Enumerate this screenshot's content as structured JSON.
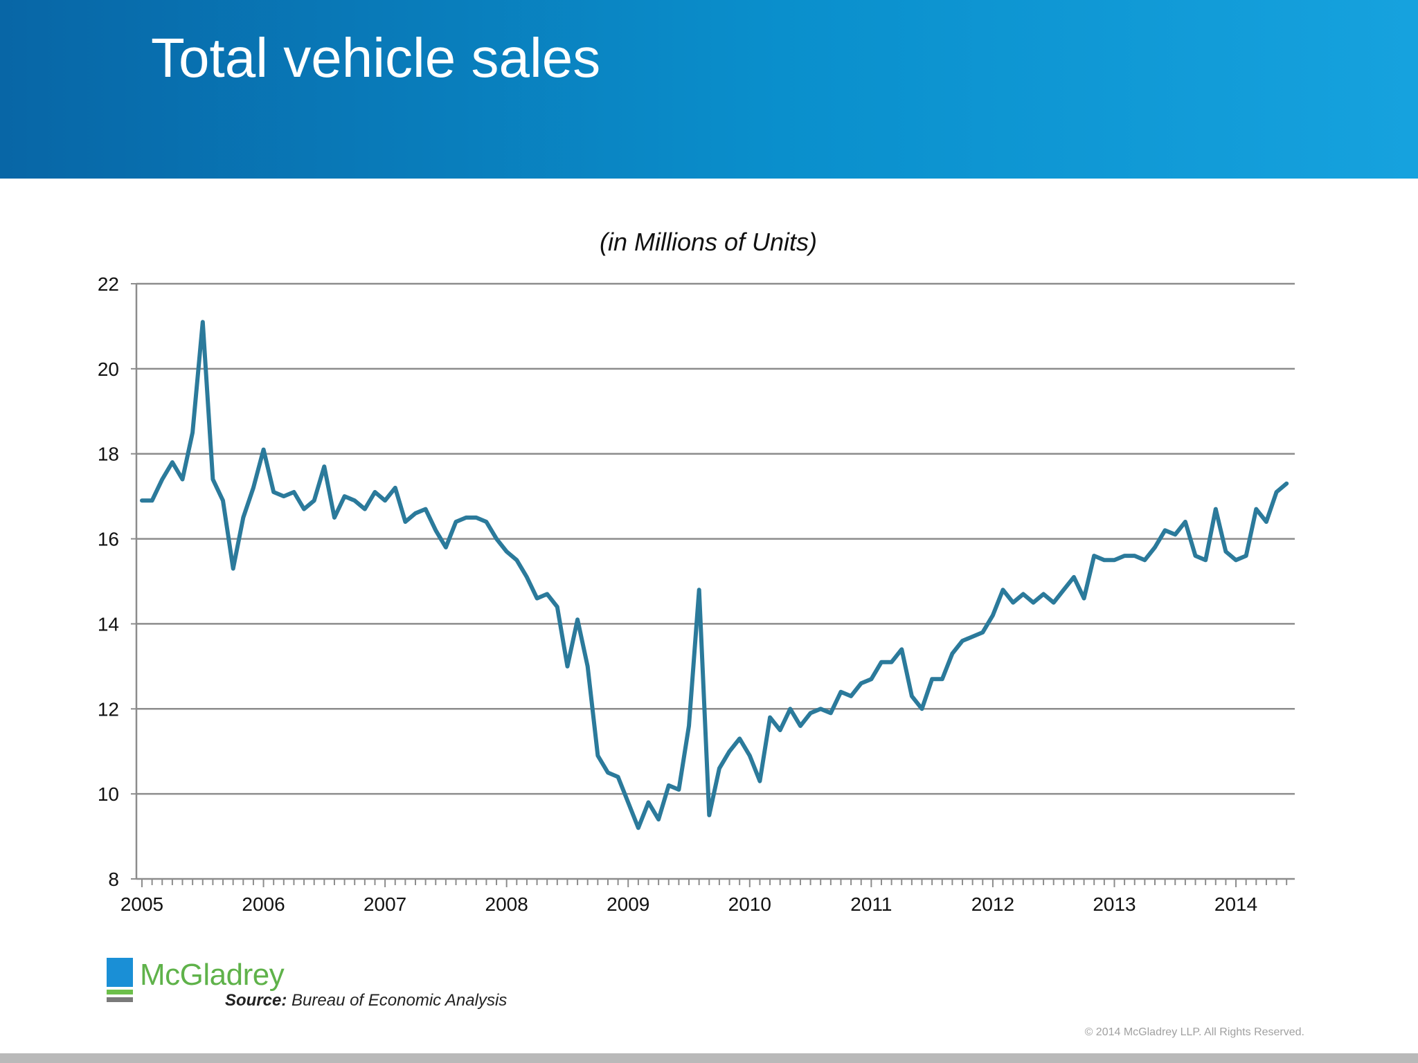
{
  "slide": {
    "title": "Total vehicle sales",
    "source_label": "Source:",
    "source_text": " Bureau of Economic Analysis",
    "copyright": "© 2014 McGladrey LLP. All Rights Reserved.",
    "logo_text": "McGladrey"
  },
  "colors": {
    "header_start": "#0866a6",
    "header_end": "#16a2de",
    "line": "#2b7a9b",
    "grid": "#8c8c8c",
    "logo_blue": "#1a8fd6",
    "logo_green": "#5fb24a"
  },
  "chart_data": {
    "type": "line",
    "title": "(in Millions of Units)",
    "xlabel": "",
    "ylabel": "",
    "ylim": [
      8,
      22
    ],
    "yticks": [
      8,
      10,
      12,
      14,
      16,
      18,
      20,
      22
    ],
    "x_tick_labels": [
      "2005",
      "2006",
      "2007",
      "2008",
      "2009",
      "2010",
      "2011",
      "2012",
      "2013",
      "2014"
    ],
    "x_start": "2005-01",
    "frequency": "monthly",
    "grid": true,
    "legend": "none",
    "series": [
      {
        "values": [
          16.9,
          16.9,
          17.4,
          17.8,
          17.4,
          18.5,
          21.1,
          17.4,
          16.9,
          15.3,
          16.5,
          17.2,
          18.1,
          17.1,
          17.0,
          17.1,
          16.7,
          16.9,
          17.7,
          16.5,
          17.0,
          16.9,
          16.7,
          17.1,
          16.9,
          17.2,
          16.4,
          16.6,
          16.7,
          16.2,
          15.8,
          16.4,
          16.5,
          16.5,
          16.4,
          16.0,
          15.7,
          15.5,
          15.1,
          14.6,
          14.7,
          14.4,
          13.0,
          14.1,
          13.0,
          10.9,
          10.5,
          10.4,
          9.8,
          9.2,
          9.8,
          9.4,
          10.2,
          10.1,
          11.6,
          14.8,
          9.5,
          10.6,
          11.0,
          11.3,
          10.9,
          10.3,
          11.8,
          11.5,
          12.0,
          11.6,
          11.9,
          12.0,
          11.9,
          12.4,
          12.3,
          12.6,
          12.7,
          13.1,
          13.1,
          13.4,
          12.3,
          12.0,
          12.7,
          12.7,
          13.3,
          13.6,
          13.7,
          13.8,
          14.2,
          14.8,
          14.5,
          14.7,
          14.5,
          14.7,
          14.5,
          14.8,
          15.1,
          14.6,
          15.6,
          15.5,
          15.5,
          15.6,
          15.6,
          15.5,
          15.8,
          16.2,
          16.1,
          16.4,
          15.6,
          15.5,
          16.7,
          15.7,
          15.5,
          15.6,
          16.7,
          16.4,
          17.1,
          17.3
        ]
      }
    ]
  }
}
